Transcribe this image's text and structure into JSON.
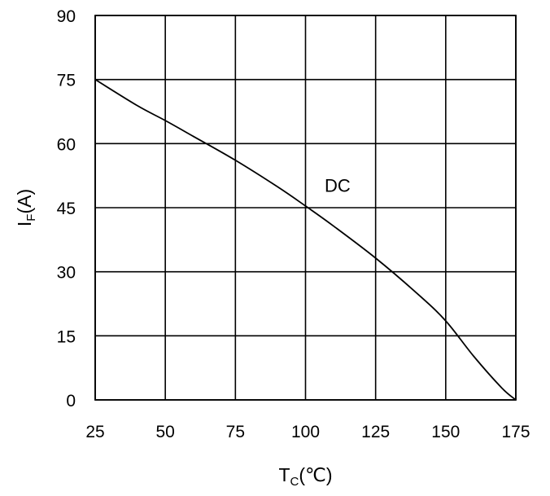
{
  "chart_data": {
    "type": "line",
    "title": "",
    "xlabel": {
      "main": "T",
      "sub": "C",
      "unit": "(℃)"
    },
    "ylabel": {
      "main": "I",
      "sub": "F",
      "unit": "(A)"
    },
    "xlim": [
      25,
      175
    ],
    "ylim": [
      0,
      90
    ],
    "x_ticks": [
      "25",
      "50",
      "75",
      "100",
      "125",
      "150",
      "175"
    ],
    "y_ticks": [
      "0",
      "15",
      "30",
      "45",
      "60",
      "75",
      "90"
    ],
    "grid": true,
    "annotations": [
      {
        "text": "DC",
        "x": 101,
        "y": 48.5
      }
    ],
    "series": [
      {
        "points": [
          [
            25,
            75
          ],
          [
            40,
            68.9
          ],
          [
            50,
            65.4
          ],
          [
            60,
            61.7
          ],
          [
            75,
            56.1
          ],
          [
            90,
            49.9
          ],
          [
            100,
            45.4
          ],
          [
            110,
            40.7
          ],
          [
            125,
            33.2
          ],
          [
            140,
            24.8
          ],
          [
            150,
            18.5
          ],
          [
            160,
            10.2
          ],
          [
            170,
            2.8
          ],
          [
            175,
            0
          ]
        ]
      }
    ]
  }
}
